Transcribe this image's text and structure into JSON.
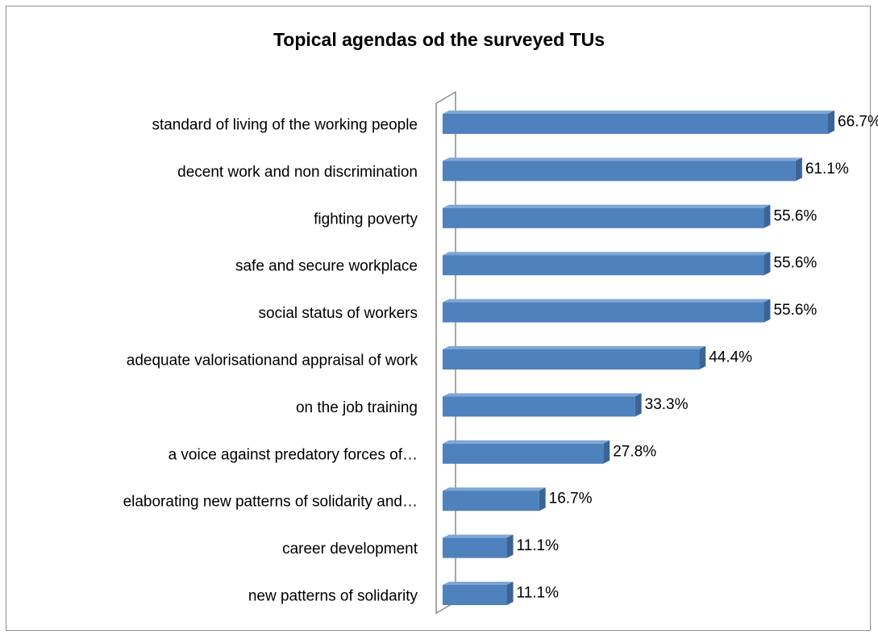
{
  "chart_data": {
    "type": "bar",
    "orientation": "horizontal",
    "title": "Topical agendas od the surveyed TUs",
    "categories": [
      "standard of living of the working people",
      "decent work and non discrimination",
      "fighting poverty",
      "safe and secure workplace",
      "social status of workers",
      "adequate valorisationand  appraisal of work",
      "on the job training",
      "a voice against predatory forces of…",
      "elaborating new patterns of solidarity and…",
      "career development",
      "new patterns of solidarity"
    ],
    "values": [
      66.7,
      61.1,
      55.6,
      55.6,
      55.6,
      44.4,
      33.3,
      27.8,
      16.7,
      11.1,
      11.1
    ],
    "value_labels": [
      "66.7%",
      "61.1%",
      "55.6%",
      "55.6%",
      "55.6%",
      "44.4%",
      "33.3%",
      "27.8%",
      "16.7%",
      "11.1%",
      "11.1%"
    ],
    "xlim": [
      0,
      66.7
    ],
    "grid": false,
    "legend": "none",
    "bar_color": "#4f81bd",
    "bar_top_color": "#7fa6d6",
    "bar_side_color": "#3b6496",
    "axis_color": "#8c8c8c"
  }
}
